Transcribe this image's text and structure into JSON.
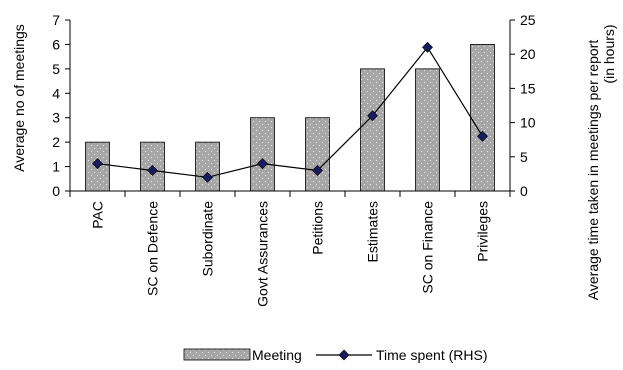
{
  "chart_data": {
    "type": "bar",
    "categories": [
      "PAC",
      "SC on Defence",
      "Subordinate",
      "Govt Assurances",
      "Petitions",
      "Estimates",
      "SC on Finance",
      "Privileges"
    ],
    "series": [
      {
        "name": "Meeting",
        "type": "bar",
        "axis": "left",
        "values": [
          2,
          2,
          2,
          3,
          3,
          5,
          5,
          6
        ]
      },
      {
        "name": "Time spent (RHS)",
        "type": "line",
        "axis": "right",
        "values": [
          4,
          3,
          2,
          4,
          3,
          11,
          21,
          8
        ]
      }
    ],
    "ylabel": "Average no of meetings",
    "y2label_line1": "Average time taken in meetings per report",
    "y2label_line2": "(in hours)",
    "ylim": [
      0,
      7
    ],
    "yticks": [
      0,
      1,
      2,
      3,
      4,
      5,
      6,
      7
    ],
    "y2lim": [
      0,
      25
    ],
    "y2ticks": [
      0,
      5,
      10,
      15,
      20,
      25
    ],
    "grid": false,
    "legend_position": "bottom",
    "colors": {
      "bar_fill": "#a6a6a6",
      "line": "#000000",
      "marker": "#1a1a5e"
    }
  }
}
